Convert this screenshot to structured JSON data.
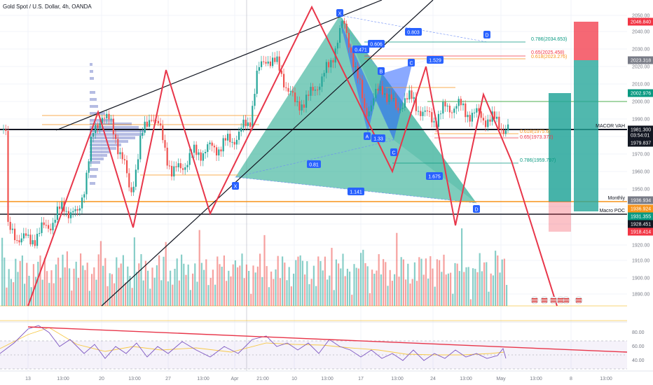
{
  "header": {
    "title": "Gold Spot / U.S. Dollar, 4h, OANDA"
  },
  "price_axis": {
    "ticks": [
      "2050.00",
      "2040.00",
      "2030.00",
      "2020.00",
      "2010.00",
      "2000.00",
      "1990.00",
      "1980.00",
      "1970.00",
      "1960.00",
      "1950.00",
      "1940.00",
      "1930.00",
      "1920.00",
      "1910.00",
      "1900.00",
      "1890.00",
      "1880.00"
    ],
    "badges": [
      {
        "text": "2046.840",
        "color": "#f23645"
      },
      {
        "text": "2023.318",
        "color": "#787b86"
      },
      {
        "text": "2002.976",
        "color": "#089981"
      },
      {
        "text": "1981.300",
        "color": "#131722"
      },
      {
        "text": "03:54:01",
        "color": "#131722"
      },
      {
        "text": "1979.837",
        "color": "#131722"
      },
      {
        "text": "1936.934",
        "color": "#787b86"
      },
      {
        "text": "1936.924",
        "color": "#f7931a"
      },
      {
        "text": "1931.355",
        "color": "#089981"
      },
      {
        "text": "1928.451",
        "color": "#131722"
      },
      {
        "text": "1918.414",
        "color": "#f23645"
      }
    ]
  },
  "rsi_axis": {
    "ticks": [
      "80.00",
      "60.00",
      "40.00"
    ]
  },
  "time_axis": {
    "ticks": [
      "13",
      "13:00",
      "20",
      "13:00",
      "27",
      "13:00",
      "Apr",
      "21:00",
      "10",
      "13:00",
      "17",
      "13:00",
      "24",
      "13:00",
      "May",
      "13:00",
      "8",
      "13:00"
    ]
  },
  "annotations": {
    "macro_vah": "MACOR VAH",
    "monthly": "Monthly",
    "macro_poc": "Macro POC"
  },
  "fib_labels": {
    "f786_top": "0.786(2034.653)",
    "f65_top": "0.65(2025.458)",
    "f618_top": "0.618(2023.276)",
    "f65_mid": "0.65(1973.372)",
    "f618_mid": "0.618(1975.6)",
    "f786_low": "0.786(1959.797)"
  },
  "ratios": {
    "r0803": "0.803",
    "r0606": "0.606",
    "r0471": "0.471",
    "r1529": "1.529",
    "r133": "1.33",
    "r081": "0.81",
    "r1675": "1.675",
    "r1141": "1.141"
  },
  "points": {
    "X": "X",
    "A": "A",
    "B": "B",
    "C": "C",
    "D": "D"
  },
  "colors": {
    "up": "#26a69a",
    "down": "#ef5350",
    "harmonic_teal": "#3bb29a",
    "harmonic_blue": "#2962ff",
    "zigzag": "#e8364a",
    "orange": "#f7931a"
  }
}
